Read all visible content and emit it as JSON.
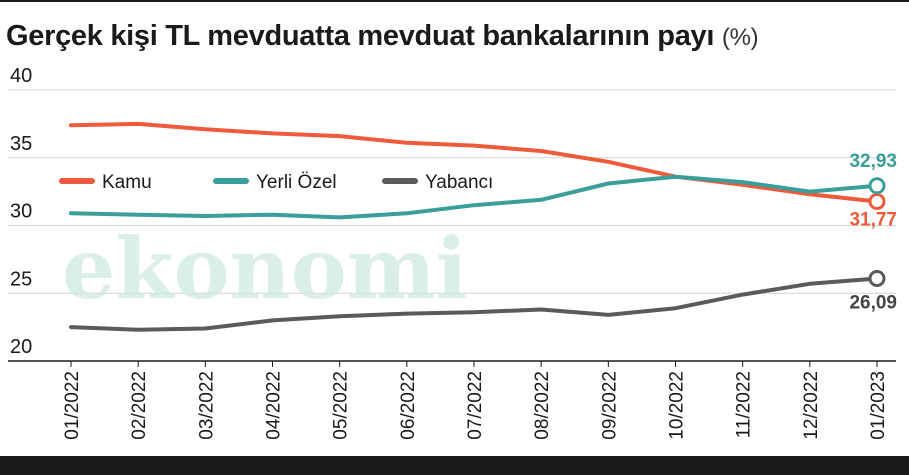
{
  "title": "Gerçek kişi TL mevduatta mevduat bankalarının payı",
  "title_unit": "(%)",
  "watermark": "ekonomi",
  "chart_data": {
    "type": "line",
    "title": "Gerçek kişi TL mevduatta mevduat bankalarının payı (%)",
    "x": [
      "01/2022",
      "02/2022",
      "03/2022",
      "04/2022",
      "05/2022",
      "06/2022",
      "07/2022",
      "08/2022",
      "09/2022",
      "10/2022",
      "11/2022",
      "12/2022",
      "01/2023"
    ],
    "ylim": [
      20,
      40
    ],
    "yticks": [
      20,
      25,
      30,
      35,
      40
    ],
    "grid": "horizontal",
    "legend_position": "top-left inside plot",
    "series": [
      {
        "name": "Kamu",
        "color": "#f05a3c",
        "values": [
          37.4,
          37.5,
          37.1,
          36.8,
          36.6,
          36.1,
          35.9,
          35.5,
          34.7,
          33.6,
          33.0,
          32.3,
          31.77
        ],
        "end_label": "31,77"
      },
      {
        "name": "Yerli Özel",
        "color": "#3a9e9a",
        "values": [
          30.9,
          30.8,
          30.7,
          30.8,
          30.6,
          30.9,
          31.5,
          31.9,
          33.1,
          33.6,
          33.2,
          32.5,
          32.93
        ],
        "end_label": "32,93"
      },
      {
        "name": "Yabancı",
        "color": "#5a5a5a",
        "values": [
          22.5,
          22.3,
          22.4,
          23.0,
          23.3,
          23.5,
          23.6,
          23.8,
          23.4,
          23.9,
          24.9,
          25.7,
          26.09
        ],
        "end_label": "26,09"
      }
    ]
  }
}
